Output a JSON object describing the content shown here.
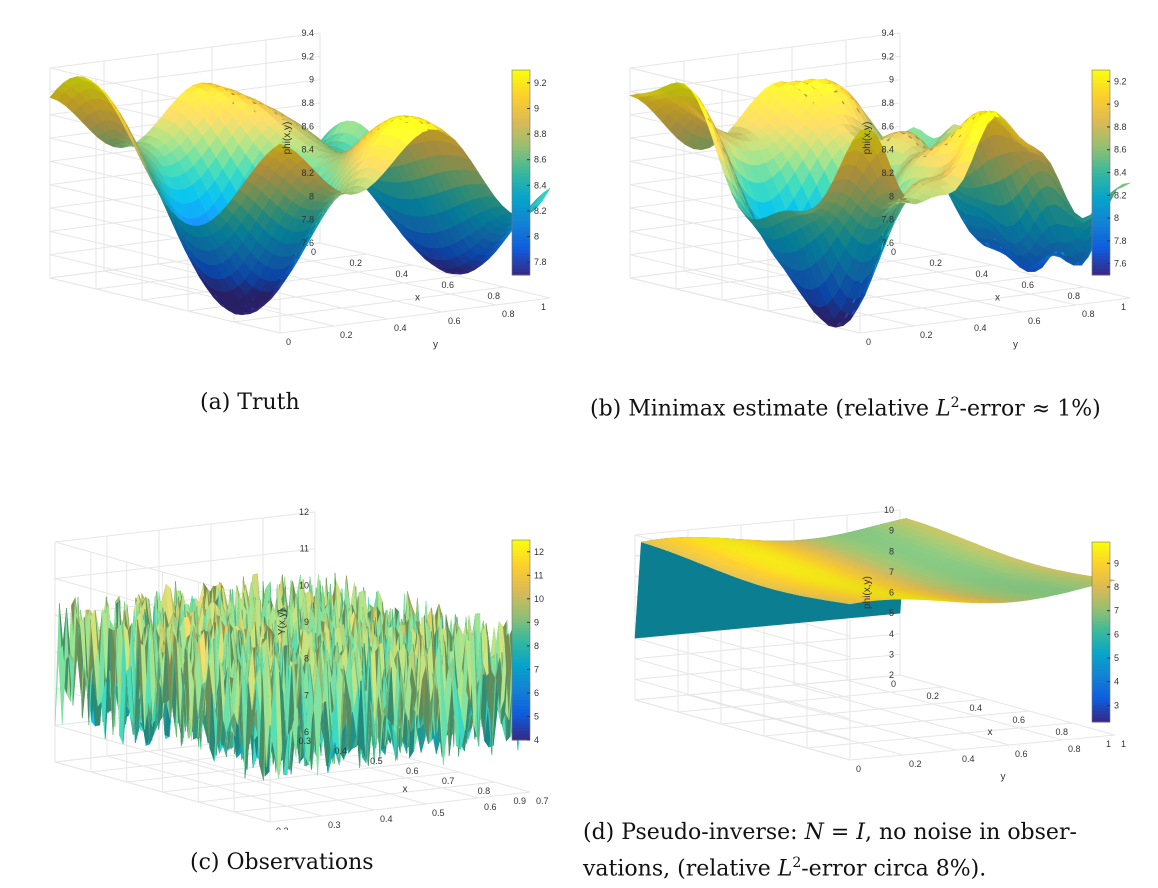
{
  "chart_data": [
    {
      "panel": "a",
      "type": "surface",
      "caption": "(a) Truth",
      "xlabel": "x",
      "ylabel": "y",
      "zlabel": "phi(x,y)",
      "xlim": [
        0,
        1
      ],
      "ylim": [
        0,
        1
      ],
      "zlim": [
        7.6,
        9.4
      ],
      "xticks": [
        "0",
        "0.2",
        "0.4",
        "0.6",
        "0.8",
        "1"
      ],
      "yticks": [
        "0",
        "0.2",
        "0.4",
        "0.6",
        "0.8",
        "1"
      ],
      "zticks": [
        "7.6",
        "7.8",
        "8",
        "8.2",
        "8.4",
        "8.6",
        "8.8",
        "9",
        "9.2",
        "9.4"
      ],
      "colorbar": {
        "min": 7.7,
        "max": 9.3,
        "ticks": [
          "7.8",
          "8",
          "8.2",
          "8.4",
          "8.6",
          "8.8",
          "9",
          "9.2"
        ]
      },
      "grid": true
    },
    {
      "panel": "b",
      "type": "surface",
      "caption_prefix": "(b) Minimax estimate (relative ",
      "caption_sym": "L",
      "caption_sup": "2",
      "caption_suffix": "-error ≈ 1%)",
      "xlabel": "x",
      "ylabel": "y",
      "zlabel": "phi(x,y)",
      "xlim": [
        0,
        1
      ],
      "ylim": [
        0,
        1
      ],
      "zlim": [
        7.6,
        9.4
      ],
      "xticks": [
        "0",
        "0.2",
        "0.4",
        "0.6",
        "0.8",
        "1"
      ],
      "yticks": [
        "0",
        "0.2",
        "0.4",
        "0.6",
        "0.8",
        "1"
      ],
      "zticks": [
        "7.6",
        "7.8",
        "8",
        "8.2",
        "8.4",
        "8.6",
        "8.8",
        "9",
        "9.2",
        "9.4"
      ],
      "colorbar": {
        "min": 7.5,
        "max": 9.3,
        "ticks": [
          "7.6",
          "7.8",
          "8",
          "8.2",
          "8.4",
          "8.6",
          "8.8",
          "9",
          "9.2"
        ]
      },
      "grid": true
    },
    {
      "panel": "c",
      "type": "surface",
      "caption": "(c) Observations",
      "xlabel": "x",
      "ylabel": "y",
      "zlabel": "Y(x,y)",
      "xlim": [
        0.3,
        0.9
      ],
      "ylim": [
        0.2,
        0.7
      ],
      "zlim": [
        6,
        12
      ],
      "xticks": [
        "0.3",
        "0.4",
        "0.5",
        "0.6",
        "0.7",
        "0.8",
        "0.9"
      ],
      "yticks": [
        "0.2",
        "0.3",
        "0.4",
        "0.5",
        "0.6",
        "0.7"
      ],
      "zticks": [
        "6",
        "7",
        "8",
        "9",
        "10",
        "11",
        "12"
      ],
      "colorbar": {
        "min": 4,
        "max": 12.5,
        "ticks": [
          "4",
          "5",
          "6",
          "7",
          "8",
          "9",
          "10",
          "11",
          "12"
        ]
      },
      "grid": true
    },
    {
      "panel": "d",
      "type": "surface",
      "caption_l1_prefix": "(d) Pseudo-inverse: ",
      "caption_l1_sym": "N = I",
      "caption_l1_suffix": ", no noise in obser-",
      "caption_l2_prefix": "vations, (relative ",
      "caption_l2_sym": "L",
      "caption_l2_sup": "2",
      "caption_l2_suffix": "-error circa 8%).",
      "xlabel": "x",
      "ylabel": "y",
      "zlabel": "phi(x,y)",
      "xlim": [
        0,
        1
      ],
      "ylim": [
        0,
        1
      ],
      "zlim": [
        2,
        10
      ],
      "xticks": [
        "0",
        "0.2",
        "0.4",
        "0.6",
        "0.8",
        "1"
      ],
      "yticks": [
        "0",
        "0.2",
        "0.4",
        "0.6",
        "0.8",
        "1"
      ],
      "zticks": [
        "2",
        "3",
        "4",
        "5",
        "6",
        "7",
        "8",
        "9",
        "10"
      ],
      "colorbar": {
        "min": 2.3,
        "max": 9.9,
        "ticks": [
          "3",
          "4",
          "5",
          "6",
          "7",
          "8",
          "9"
        ]
      },
      "grid": true
    }
  ]
}
